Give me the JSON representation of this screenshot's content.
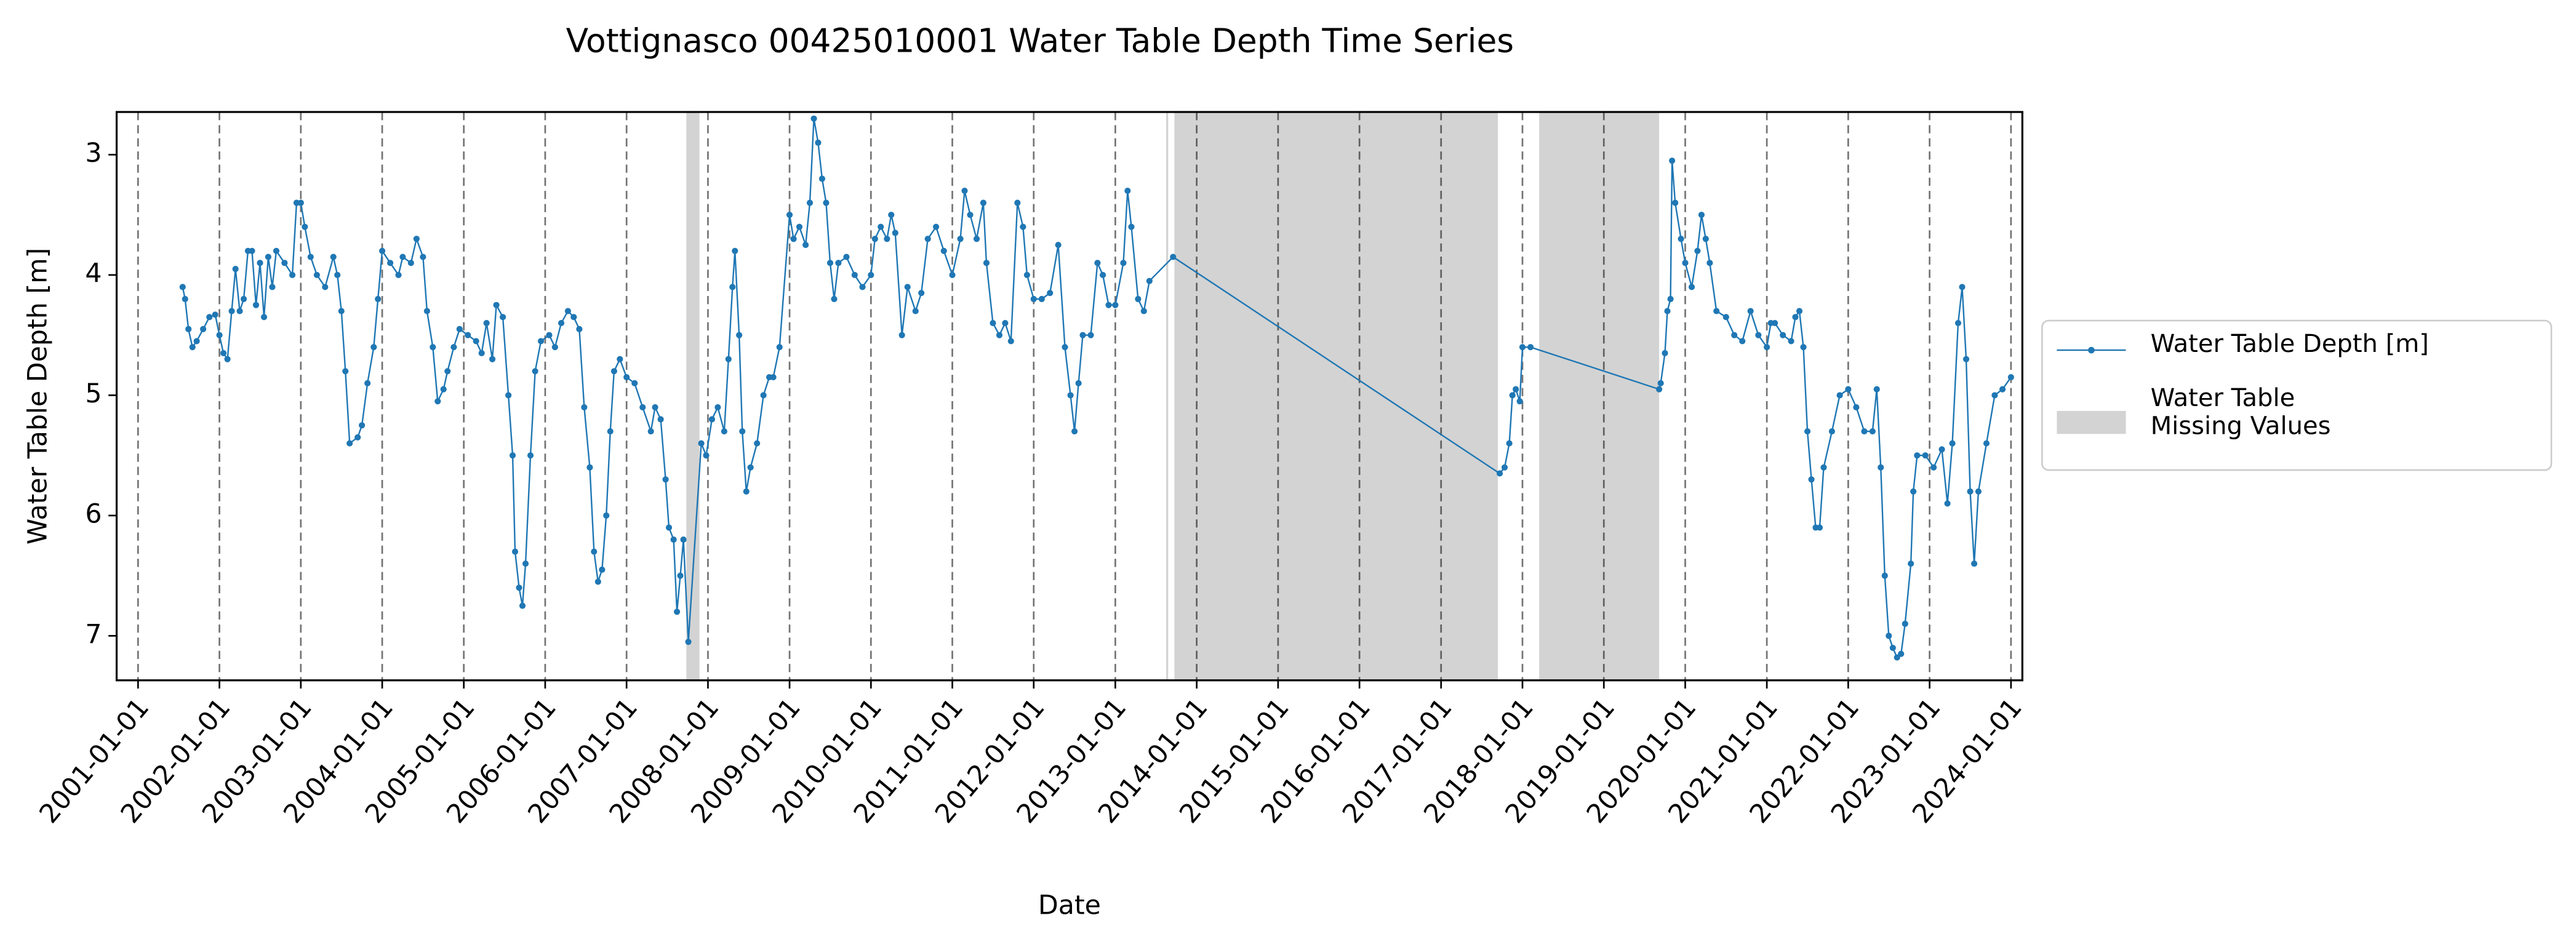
{
  "chart_data": {
    "type": "line",
    "title": "Vottignasco 00425010001 Water Table Depth  Time Series",
    "x_label": "Date",
    "y_label": "Water Table Depth [m]",
    "xlim": [
      "2000-09-27",
      "2024-02-21"
    ],
    "xticks": [
      "2001-01-01",
      "2002-01-01",
      "2003-01-01",
      "2004-01-01",
      "2005-01-01",
      "2006-01-01",
      "2007-01-01",
      "2008-01-01",
      "2009-01-01",
      "2010-01-01",
      "2011-01-01",
      "2012-01-01",
      "2013-01-01",
      "2014-01-01",
      "2015-01-01",
      "2016-01-01",
      "2017-01-01",
      "2018-01-01",
      "2019-01-01",
      "2020-01-01",
      "2021-01-01",
      "2022-01-01",
      "2023-01-01",
      "2024-01-01"
    ],
    "ylim": [
      2.645,
      7.37
    ],
    "yticks": [
      3,
      4,
      5,
      6,
      7
    ],
    "y_inverted": true,
    "x_grid": true,
    "legend": "right",
    "missing_label": "Water Table\nMissing Values",
    "missing_color": "#d3d3d3",
    "missing_ranges": [
      {
        "start": "2007-09-26",
        "end": "2007-11-24"
      },
      {
        "start": "2013-08-17",
        "end": "2013-08-26"
      },
      {
        "start": "2013-09-23",
        "end": "2017-09-13"
      },
      {
        "start": "2018-03-17",
        "end": "2019-09-06"
      }
    ],
    "x": [
      "2001-07-20",
      "2001-07-31",
      "2001-08-15",
      "2001-09-02",
      "2001-09-21",
      "2001-10-20",
      "2001-11-17",
      "2001-12-13",
      "2002-01-01",
      "2002-01-19",
      "2002-02-06",
      "2002-02-25",
      "2002-03-14",
      "2002-04-02",
      "2002-04-20",
      "2002-05-09",
      "2002-05-27",
      "2002-06-14",
      "2002-07-02",
      "2002-07-20",
      "2002-08-08",
      "2002-08-26",
      "2002-09-13",
      "2002-10-20",
      "2002-11-24",
      "2002-12-13",
      "2003-01-01",
      "2003-01-19",
      "2003-02-14",
      "2003-03-14",
      "2003-04-20",
      "2003-05-27",
      "2003-06-14",
      "2003-07-02",
      "2003-07-20",
      "2003-08-08",
      "2003-09-13",
      "2003-10-02",
      "2003-10-27",
      "2003-11-24",
      "2003-12-13",
      "2004-01-01",
      "2004-02-06",
      "2004-03-14",
      "2004-04-02",
      "2004-05-09",
      "2004-06-03",
      "2004-07-02",
      "2004-07-20",
      "2004-08-15",
      "2004-09-06",
      "2004-10-02",
      "2004-10-20",
      "2004-11-17",
      "2004-12-13",
      "2005-01-19",
      "2005-02-25",
      "2005-03-22",
      "2005-04-13",
      "2005-05-09",
      "2005-05-27",
      "2005-06-25",
      "2005-07-20",
      "2005-08-08",
      "2005-08-19",
      "2005-09-06",
      "2005-09-21",
      "2005-10-05",
      "2005-10-27",
      "2005-11-17",
      "2005-12-13",
      "2006-01-19",
      "2006-02-14",
      "2006-03-14",
      "2006-04-13",
      "2006-05-09",
      "2006-06-03",
      "2006-06-25",
      "2006-07-20",
      "2006-08-08",
      "2006-08-26",
      "2006-09-13",
      "2006-10-02",
      "2006-10-20",
      "2006-11-06",
      "2006-12-02",
      "2007-01-01",
      "2007-02-06",
      "2007-03-14",
      "2007-04-20",
      "2007-05-09",
      "2007-06-03",
      "2007-06-25",
      "2007-07-10",
      "2007-07-31",
      "2007-08-15",
      "2007-08-30",
      "2007-09-13",
      "2007-10-05",
      "2007-12-02",
      "2007-12-24",
      "2008-01-19",
      "2008-02-14",
      "2008-03-14",
      "2008-04-02",
      "2008-04-20",
      "2008-05-01",
      "2008-05-20",
      "2008-06-03",
      "2008-06-21",
      "2008-07-10",
      "2008-08-08",
      "2008-09-06",
      "2008-10-02",
      "2008-10-20",
      "2008-11-17",
      "2009-01-01",
      "2009-01-19",
      "2009-02-14",
      "2009-03-14",
      "2009-04-02",
      "2009-04-20",
      "2009-05-09",
      "2009-05-27",
      "2009-06-14",
      "2009-07-02",
      "2009-07-20",
      "2009-08-08",
      "2009-09-13",
      "2009-10-20",
      "2009-11-24",
      "2010-01-01",
      "2010-01-19",
      "2010-02-14",
      "2010-03-14",
      "2010-04-02",
      "2010-04-20",
      "2010-05-20",
      "2010-06-14",
      "2010-07-20",
      "2010-08-15",
      "2010-09-13",
      "2010-10-20",
      "2010-11-24",
      "2011-01-01",
      "2011-02-06",
      "2011-02-25",
      "2011-03-22",
      "2011-04-20",
      "2011-05-20",
      "2011-06-03",
      "2011-07-02",
      "2011-07-31",
      "2011-08-26",
      "2011-09-21",
      "2011-10-20",
      "2011-11-14",
      "2011-12-02",
      "2012-01-01",
      "2012-02-06",
      "2012-03-14",
      "2012-04-20",
      "2012-05-20",
      "2012-06-14",
      "2012-07-02",
      "2012-07-20",
      "2012-08-08",
      "2012-09-13",
      "2012-10-13",
      "2012-11-06",
      "2012-12-02",
      "2013-01-01",
      "2013-02-06",
      "2013-02-25",
      "2013-03-14",
      "2013-04-13",
      "2013-05-09",
      "2013-06-03",
      "2013-09-17",
      "2017-09-21",
      "2017-10-13",
      "2017-11-03",
      "2017-11-17",
      "2017-12-02",
      "2017-12-20",
      "2018-01-01",
      "2018-02-06",
      "2019-09-06",
      "2019-09-13",
      "2019-10-02",
      "2019-10-13",
      "2019-10-27",
      "2019-11-03",
      "2019-11-17",
      "2019-12-13",
      "2020-01-01",
      "2020-01-30",
      "2020-02-25",
      "2020-03-14",
      "2020-04-02",
      "2020-04-20",
      "2020-05-20",
      "2020-07-02",
      "2020-08-08",
      "2020-09-13",
      "2020-10-20",
      "2020-11-24",
      "2021-01-01",
      "2021-01-19",
      "2021-02-06",
      "2021-03-14",
      "2021-04-20",
      "2021-05-09",
      "2021-05-27",
      "2021-06-14",
      "2021-07-02",
      "2021-07-20",
      "2021-08-08",
      "2021-08-26",
      "2021-09-13",
      "2021-10-20",
      "2021-11-24",
      "2022-01-01",
      "2022-02-06",
      "2022-03-14",
      "2022-04-20",
      "2022-05-09",
      "2022-05-27",
      "2022-06-14",
      "2022-07-02",
      "2022-07-20",
      "2022-08-08",
      "2022-08-26",
      "2022-09-13",
      "2022-10-09",
      "2022-10-20",
      "2022-11-06",
      "2022-12-13",
      "2023-01-19",
      "2023-02-25",
      "2023-03-22",
      "2023-04-13",
      "2023-05-09",
      "2023-05-27",
      "2023-06-14",
      "2023-07-02",
      "2023-07-20",
      "2023-08-08",
      "2023-09-13",
      "2023-10-20",
      "2023-11-24",
      "2024-01-01"
    ],
    "series": [
      {
        "name": "Water Table Depth [m]",
        "color": "#1f77b4",
        "values": [
          4.1,
          4.2,
          4.45,
          4.6,
          4.55,
          4.45,
          4.35,
          4.33,
          4.5,
          4.65,
          4.7,
          4.3,
          3.95,
          4.3,
          4.2,
          3.8,
          3.8,
          4.25,
          3.9,
          4.35,
          3.85,
          4.1,
          3.8,
          3.9,
          4.0,
          3.4,
          3.4,
          3.6,
          3.85,
          4.0,
          4.1,
          3.85,
          4.0,
          4.3,
          4.8,
          5.4,
          5.35,
          5.25,
          4.9,
          4.6,
          4.2,
          3.8,
          3.9,
          4.0,
          3.85,
          3.9,
          3.7,
          3.85,
          4.3,
          4.6,
          5.05,
          4.95,
          4.8,
          4.6,
          4.45,
          4.5,
          4.55,
          4.65,
          4.4,
          4.7,
          4.25,
          4.35,
          5.0,
          5.5,
          6.3,
          6.6,
          6.75,
          6.4,
          5.5,
          4.8,
          4.55,
          4.5,
          4.6,
          4.4,
          4.3,
          4.35,
          4.45,
          5.1,
          5.6,
          6.3,
          6.55,
          6.45,
          6.0,
          5.3,
          4.8,
          4.7,
          4.85,
          4.9,
          5.1,
          5.3,
          5.1,
          5.2,
          5.7,
          6.1,
          6.2,
          6.8,
          6.5,
          6.2,
          7.05,
          5.4,
          5.5,
          5.2,
          5.1,
          5.3,
          4.7,
          4.1,
          3.8,
          4.5,
          5.3,
          5.8,
          5.6,
          5.4,
          5.0,
          4.85,
          4.85,
          4.6,
          3.5,
          3.7,
          3.6,
          3.75,
          3.4,
          2.7,
          2.9,
          3.2,
          3.4,
          3.9,
          4.2,
          3.9,
          3.85,
          4.0,
          4.1,
          4.0,
          3.7,
          3.6,
          3.7,
          3.5,
          3.65,
          4.5,
          4.1,
          4.3,
          4.15,
          3.7,
          3.6,
          3.8,
          4.0,
          3.7,
          3.3,
          3.5,
          3.7,
          3.4,
          3.9,
          4.4,
          4.5,
          4.4,
          4.55,
          3.4,
          3.6,
          4.0,
          4.2,
          4.2,
          4.15,
          3.75,
          4.6,
          5.0,
          5.3,
          4.9,
          4.5,
          4.5,
          3.9,
          4.0,
          4.25,
          4.25,
          3.9,
          3.3,
          3.6,
          4.2,
          4.3,
          4.05,
          3.85,
          5.65,
          5.6,
          5.4,
          5.0,
          4.95,
          5.05,
          4.6,
          4.6,
          4.95,
          4.9,
          4.65,
          4.3,
          4.2,
          3.05,
          3.4,
          3.7,
          3.9,
          4.1,
          3.8,
          3.5,
          3.7,
          3.9,
          4.3,
          4.35,
          4.5,
          4.55,
          4.3,
          4.5,
          4.6,
          4.4,
          4.4,
          4.5,
          4.55,
          4.35,
          4.3,
          4.6,
          5.3,
          5.7,
          6.1,
          6.1,
          5.6,
          5.3,
          5.0,
          4.95,
          5.1,
          5.3,
          5.3,
          4.95,
          5.6,
          6.5,
          7.0,
          7.1,
          7.18,
          7.15,
          6.9,
          6.4,
          5.8,
          5.5,
          5.5,
          5.6,
          5.45,
          5.9,
          5.4,
          4.4,
          4.1,
          4.7,
          5.8,
          6.4,
          5.8,
          5.4,
          5.0,
          4.95,
          4.85
        ]
      }
    ]
  }
}
